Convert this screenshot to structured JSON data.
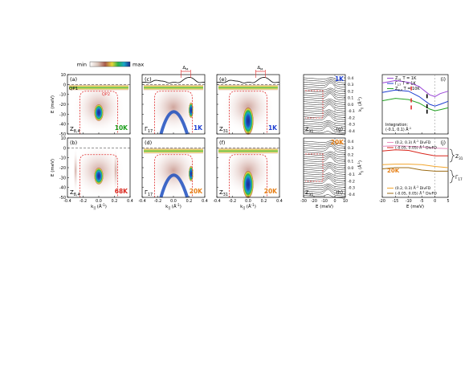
{
  "colorbar": {
    "min_label": "min",
    "max_label": "max"
  },
  "panels": {
    "a": {
      "letter": "(a)",
      "name": "Z",
      "sub": "8,4",
      "temp": "10K",
      "temp_color": "#1a9e1a",
      "extra": "QP1",
      "extra2": "QP2"
    },
    "b": {
      "letter": "(b)",
      "name": "Z",
      "sub": "8,4",
      "temp": "68K",
      "temp_color": "#d9261c"
    },
    "c": {
      "letter": "(c)",
      "name": "Γ",
      "sub": "17",
      "temp": "1K",
      "temp_color": "#1f3fd1",
      "delta": "Δ",
      "delta_sub": "M"
    },
    "d": {
      "letter": "(d)",
      "name": "Γ",
      "sub": "17",
      "temp": "20K",
      "temp_color": "#e67e14"
    },
    "e": {
      "letter": "(e)",
      "name": "Z",
      "sub": "31",
      "temp": "1K",
      "temp_color": "#1f3fd1",
      "delta": "Δ",
      "delta_sub": "M"
    },
    "f": {
      "letter": "(f)",
      "name": "Z",
      "sub": "31",
      "temp": "20K",
      "temp_color": "#e67e14"
    },
    "g": {
      "letter": "(g)",
      "name": "Z",
      "sub": "31",
      "temp": "1K",
      "temp_color": "#1f3fd1"
    },
    "h": {
      "letter": "(h)",
      "name": "Z",
      "sub": "31",
      "temp": "20K",
      "temp_color": "#e67e14"
    },
    "i": {
      "letter": "(i)"
    },
    "j": {
      "letter": "(j)"
    }
  },
  "axes": {
    "ylabel_E": "E (meV)",
    "xlabel_k": "k",
    "xlabel_k_sub": "||",
    "xlabel_k_unit": " (Å",
    "xlabel_k_sup": "-1",
    "xlabel_k_close": ")",
    "xlabel_E": "E (meV)",
    "ylabel_k": "k",
    "ylabel_k_sub": "||",
    "ylabel_k_sup": "-1",
    "ylabel_k_unit": " (Å",
    "ylabel_k_close": ")",
    "e_ticks": [
      "10",
      "0",
      "-10",
      "-20",
      "-30",
      "-40",
      "-50"
    ],
    "k_ticks": [
      "-0.4",
      "-0.2",
      "0.0",
      "0.2",
      "0.4"
    ],
    "edc_x_ticks": [
      "-30",
      "-20",
      "-10",
      "0",
      "10"
    ],
    "edc_y_ticks": [
      "0.4",
      "0.3",
      "0.2",
      "0.1",
      "0.0",
      "-0.1",
      "-0.2",
      "-0.3",
      "-0.4"
    ],
    "side_x_ticks": [
      "-20",
      "-15",
      "-10",
      "-5",
      "0",
      "5"
    ]
  },
  "legend_i": {
    "entries": [
      {
        "name": "Z",
        "sub": "31",
        "cond": "T = 1K",
        "color": "#9b47d8"
      },
      {
        "name": "Γ",
        "sub": "17",
        "cond": "T = 1K",
        "color": "#1f3fd1"
      },
      {
        "name": "Z",
        "sub": "8,4",
        "cond": "T = 10K",
        "color": "#24a324"
      }
    ],
    "integration_line1": "Integration:",
    "integration_line2": "(-0.1, 0.1) Å",
    "integration_sup": "-1"
  },
  "legend_j": {
    "top": [
      {
        "label": "(0.2, 0.3) Å",
        "sup": "-1",
        "tail": " DivFD",
        "color": "#e98fc0"
      },
      {
        "label": "(-0.05, 0.05) Å",
        "sup": "-1",
        "tail": " DivFD",
        "color": "#d9261c"
      }
    ],
    "bottom": [
      {
        "label": "(0.2, 0.3) Å",
        "sup": "-1",
        "tail": " DivFD",
        "color": "#f2a52c"
      },
      {
        "label": "(-0.05, 0.05) Å",
        "sup": "-1",
        "tail": " DivFD",
        "color": "#9c6b14"
      }
    ],
    "temp": "20K",
    "temp_color": "#e67e14",
    "group_top": {
      "name": "Z",
      "sub": "31"
    },
    "group_bottom": {
      "name": "Γ",
      "sub": "17"
    }
  },
  "chart_data": [
    {
      "type": "line",
      "title": "(i)",
      "xlabel": "E (meV)",
      "xlim": [
        -20,
        5
      ],
      "series": [
        {
          "name": "Z31 T = 1K",
          "x": [
            -20,
            -15,
            -10,
            -6,
            -2,
            0,
            2,
            5
          ],
          "y": [
            0.86,
            0.9,
            0.87,
            0.8,
            0.66,
            0.63,
            0.68,
            0.72
          ]
        },
        {
          "name": "Γ17 T = 1K",
          "x": [
            -20,
            -15,
            -10,
            -6,
            -2,
            0,
            2,
            5
          ],
          "y": [
            0.7,
            0.74,
            0.72,
            0.63,
            0.5,
            0.47,
            0.5,
            0.55
          ]
        },
        {
          "name": "Z8,4 T = 10K",
          "x": [
            -20,
            -15,
            -10,
            -6,
            -2,
            0,
            2,
            5
          ],
          "y": [
            0.56,
            0.6,
            0.58,
            0.52,
            0.42,
            0.39,
            0.41,
            0.44
          ]
        }
      ]
    },
    {
      "type": "line",
      "title": "(j)",
      "xlabel": "E (meV)",
      "xlim": [
        -20,
        5
      ],
      "series": [
        {
          "name": "(0.2, 0.3) Å-1 DivFD",
          "x": [
            -20,
            -15,
            -10,
            -5,
            0,
            5
          ],
          "y": [
            0.86,
            0.87,
            0.86,
            0.85,
            0.83,
            0.82
          ]
        },
        {
          "name": "(-0.05, 0.05) Å-1 DivFD",
          "x": [
            -20,
            -15,
            -10,
            -5,
            0,
            5
          ],
          "y": [
            0.78,
            0.8,
            0.79,
            0.74,
            0.7,
            0.7
          ]
        },
        {
          "name": "(0.2, 0.3) Å-1 DivFD",
          "x": [
            -20,
            -15,
            -10,
            -5,
            0,
            5
          ],
          "y": [
            0.55,
            0.56,
            0.56,
            0.55,
            0.52,
            0.5
          ]
        },
        {
          "name": "(-0.05, 0.05) Å-1 DivFD",
          "x": [
            -20,
            -15,
            -10,
            -5,
            0,
            5
          ],
          "y": [
            0.48,
            0.5,
            0.5,
            0.46,
            0.44,
            0.44
          ]
        }
      ]
    }
  ]
}
